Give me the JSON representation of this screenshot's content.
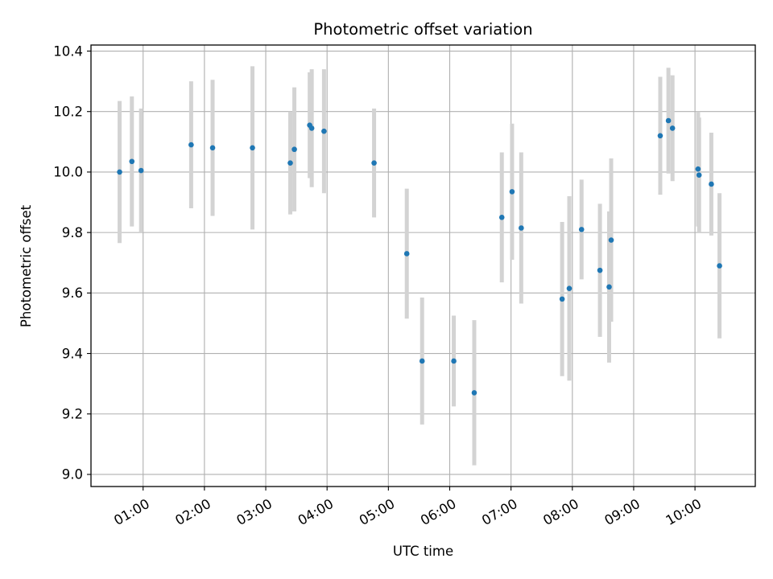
{
  "chart_data": {
    "type": "scatter",
    "title": "Photometric offset variation",
    "xlabel": "UTC time",
    "ylabel": "Photometric offset",
    "x_ticks": [
      "01:00",
      "02:00",
      "03:00",
      "04:00",
      "05:00",
      "06:00",
      "07:00",
      "08:00",
      "09:00",
      "10:00"
    ],
    "y_ticks": [
      "9.0",
      "9.2",
      "9.4",
      "9.6",
      "9.8",
      "10.0",
      "10.2",
      "10.4"
    ],
    "xlim": [
      "00:09",
      "10:59"
    ],
    "ylim": [
      8.96,
      10.42
    ],
    "grid": true,
    "colors": {
      "points": "#1f77b4",
      "errorbars": "#d3d3d3",
      "grid": "#b0b0b0"
    },
    "points": [
      {
        "x": "00:37",
        "y": 10.0,
        "err": 0.235
      },
      {
        "x": "00:49",
        "y": 10.035,
        "err": 0.215
      },
      {
        "x": "00:58",
        "y": 10.005,
        "err": 0.205
      },
      {
        "x": "01:47",
        "y": 10.09,
        "err": 0.21
      },
      {
        "x": "02:08",
        "y": 10.08,
        "err": 0.225
      },
      {
        "x": "02:47",
        "y": 10.08,
        "err": 0.27
      },
      {
        "x": "03:24",
        "y": 10.03,
        "err": 0.17
      },
      {
        "x": "03:28",
        "y": 10.075,
        "err": 0.205
      },
      {
        "x": "03:43",
        "y": 10.155,
        "err": 0.175
      },
      {
        "x": "03:45",
        "y": 10.145,
        "err": 0.195
      },
      {
        "x": "03:57",
        "y": 10.135,
        "err": 0.205
      },
      {
        "x": "04:46",
        "y": 10.03,
        "err": 0.18
      },
      {
        "x": "05:18",
        "y": 9.73,
        "err": 0.215
      },
      {
        "x": "05:33",
        "y": 9.375,
        "err": 0.21
      },
      {
        "x": "06:04",
        "y": 9.375,
        "err": 0.15
      },
      {
        "x": "06:24",
        "y": 9.27,
        "err": 0.24
      },
      {
        "x": "06:51",
        "y": 9.85,
        "err": 0.215
      },
      {
        "x": "07:01",
        "y": 9.935,
        "err": 0.225
      },
      {
        "x": "07:10",
        "y": 9.815,
        "err": 0.25
      },
      {
        "x": "07:50",
        "y": 9.58,
        "err": 0.255
      },
      {
        "x": "07:57",
        "y": 9.615,
        "err": 0.305
      },
      {
        "x": "08:09",
        "y": 9.81,
        "err": 0.165
      },
      {
        "x": "08:27",
        "y": 9.675,
        "err": 0.22
      },
      {
        "x": "08:36",
        "y": 9.62,
        "err": 0.25
      },
      {
        "x": "08:38",
        "y": 9.775,
        "err": 0.27
      },
      {
        "x": "09:26",
        "y": 10.12,
        "err": 0.195
      },
      {
        "x": "09:34",
        "y": 10.17,
        "err": 0.175
      },
      {
        "x": "09:38",
        "y": 10.145,
        "err": 0.175
      },
      {
        "x": "10:03",
        "y": 10.01,
        "err": 0.19
      },
      {
        "x": "10:04",
        "y": 9.99,
        "err": 0.19
      },
      {
        "x": "10:16",
        "y": 9.96,
        "err": 0.17
      },
      {
        "x": "10:24",
        "y": 9.69,
        "err": 0.24
      }
    ]
  }
}
